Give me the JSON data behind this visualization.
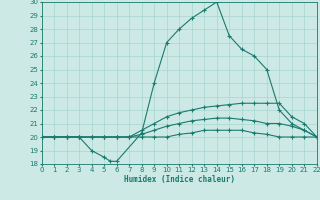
{
  "xlabel": "Humidex (Indice chaleur)",
  "ylabel": "",
  "xlim": [
    0,
    22
  ],
  "ylim": [
    18,
    30
  ],
  "xticks": [
    0,
    1,
    2,
    3,
    4,
    5,
    6,
    7,
    8,
    9,
    10,
    11,
    12,
    13,
    14,
    15,
    16,
    17,
    18,
    19,
    20,
    21,
    22
  ],
  "yticks": [
    18,
    19,
    20,
    21,
    22,
    23,
    24,
    25,
    26,
    27,
    28,
    29,
    30
  ],
  "background_color": "#cce9e5",
  "grid_color": "#a8d5cf",
  "line_color": "#1a7a6e",
  "lines": [
    {
      "x": [
        0,
        1,
        2,
        3,
        4,
        5,
        5.5,
        6,
        8,
        9,
        10,
        11,
        12,
        13,
        14,
        15,
        16,
        17,
        18,
        19,
        20,
        21,
        22
      ],
      "y": [
        20,
        20,
        20,
        20,
        19,
        18.5,
        18.2,
        18.2,
        20.3,
        24,
        27,
        28,
        28.8,
        29.4,
        30,
        27.5,
        26.5,
        26,
        25,
        22,
        21,
        20.5,
        20
      ]
    },
    {
      "x": [
        0,
        1,
        2,
        3,
        4,
        5,
        6,
        7,
        8,
        9,
        10,
        11,
        12,
        13,
        14,
        15,
        16,
        17,
        18,
        19,
        20,
        21,
        22
      ],
      "y": [
        20,
        20,
        20,
        20,
        20,
        20,
        20,
        20,
        20.5,
        21,
        21.5,
        21.8,
        22,
        22.2,
        22.3,
        22.4,
        22.5,
        22.5,
        22.5,
        22.5,
        21.5,
        21,
        20
      ]
    },
    {
      "x": [
        0,
        1,
        2,
        3,
        4,
        5,
        6,
        7,
        8,
        9,
        10,
        11,
        12,
        13,
        14,
        15,
        16,
        17,
        18,
        19,
        20,
        21,
        22
      ],
      "y": [
        20,
        20,
        20,
        20,
        20,
        20,
        20,
        20,
        20.2,
        20.5,
        20.8,
        21,
        21.2,
        21.3,
        21.4,
        21.4,
        21.3,
        21.2,
        21,
        21,
        20.8,
        20.5,
        20
      ]
    },
    {
      "x": [
        0,
        1,
        2,
        3,
        4,
        5,
        6,
        7,
        8,
        9,
        10,
        11,
        12,
        13,
        14,
        15,
        16,
        17,
        18,
        19,
        20,
        21,
        22
      ],
      "y": [
        20,
        20,
        20,
        20,
        20,
        20,
        20,
        20,
        20,
        20,
        20,
        20.2,
        20.3,
        20.5,
        20.5,
        20.5,
        20.5,
        20.3,
        20.2,
        20,
        20,
        20,
        20
      ]
    }
  ]
}
